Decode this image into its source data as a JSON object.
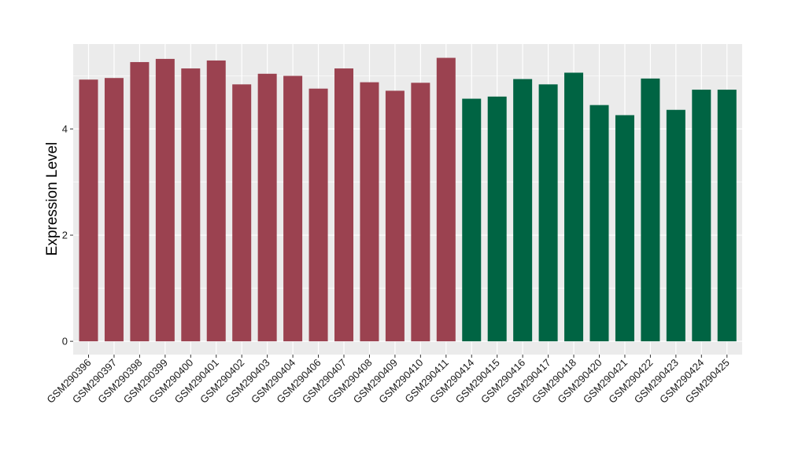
{
  "chart_data": {
    "type": "bar",
    "title": "",
    "xlabel": "",
    "ylabel": "Expression Level",
    "ylim": [
      -0.25,
      5.6
    ],
    "yticks": [
      0,
      2,
      4
    ],
    "grid": true,
    "legend": "none",
    "categories": [
      "GSM290396",
      "GSM290397",
      "GSM290398",
      "GSM290399",
      "GSM290400",
      "GSM290401",
      "GSM290402",
      "GSM290403",
      "GSM290404",
      "GSM290406",
      "GSM290407",
      "GSM290408",
      "GSM290409",
      "GSM290410",
      "GSM290411",
      "GSM290414",
      "GSM290415",
      "GSM290416",
      "GSM290417",
      "GSM290418",
      "GSM290420",
      "GSM290421",
      "GSM290422",
      "GSM290423",
      "GSM290424",
      "GSM290425"
    ],
    "values": [
      4.93,
      4.96,
      5.26,
      5.32,
      5.14,
      5.29,
      4.84,
      5.04,
      5.0,
      4.76,
      5.14,
      4.88,
      4.72,
      4.87,
      5.34,
      4.57,
      4.61,
      4.94,
      4.84,
      5.06,
      4.45,
      4.26,
      4.95,
      4.36,
      4.74,
      4.74
    ],
    "groups": [
      "a",
      "a",
      "a",
      "a",
      "a",
      "a",
      "a",
      "a",
      "a",
      "a",
      "a",
      "a",
      "a",
      "a",
      "a",
      "b",
      "b",
      "b",
      "b",
      "b",
      "b",
      "b",
      "b",
      "b",
      "b",
      "b"
    ],
    "colors": {
      "a": "#9b4250",
      "b": "#006443"
    },
    "panel_background": "#ebebeb",
    "grid_color": "#ffffff"
  }
}
